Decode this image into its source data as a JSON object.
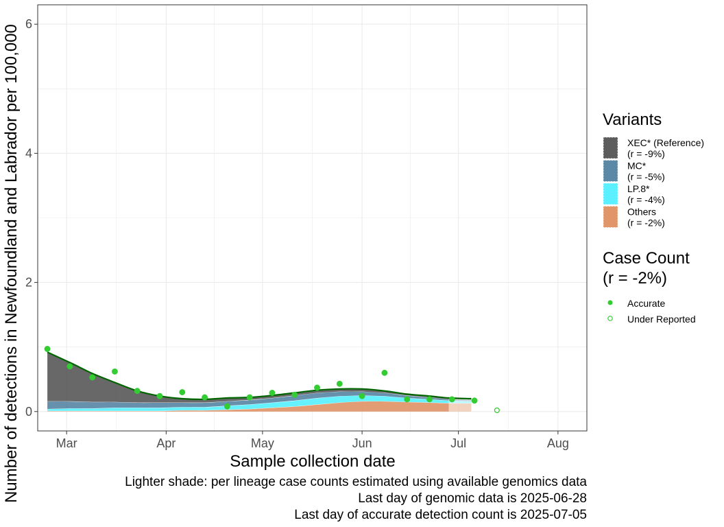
{
  "chart_data": {
    "type": "area",
    "xlabel": "Sample collection date",
    "ylabel": "Number of detections in Newfoundland and Labrador per 100,000",
    "x_ticks": [
      "Mar",
      "Apr",
      "May",
      "Jun",
      "Jul",
      "Aug"
    ],
    "x_tick_dates": [
      "2025-03-01",
      "2025-04-01",
      "2025-05-01",
      "2025-06-01",
      "2025-07-01",
      "2025-08-01"
    ],
    "xlim": [
      "2025-02-20",
      "2025-08-10"
    ],
    "y_ticks": [
      "0",
      "2",
      "4",
      "6"
    ],
    "ylim": [
      -0.3,
      6.3
    ],
    "grid": true,
    "x": [
      "2025-02-23",
      "2025-03-02",
      "2025-03-09",
      "2025-03-16",
      "2025-03-23",
      "2025-03-30",
      "2025-04-06",
      "2025-04-13",
      "2025-04-20",
      "2025-04-27",
      "2025-05-04",
      "2025-05-11",
      "2025-05-18",
      "2025-05-25",
      "2025-06-01",
      "2025-06-08",
      "2025-06-15",
      "2025-06-22",
      "2025-06-28",
      "2025-07-05"
    ],
    "series": [
      {
        "name": "XEC* (Reference)",
        "r": "(r = -9%)",
        "color": "#474747",
        "values": [
          0.76,
          0.6,
          0.44,
          0.3,
          0.18,
          0.1,
          0.06,
          0.05,
          0.05,
          0.04,
          0.04,
          0.04,
          0.04,
          0.04,
          0.04,
          0.03,
          0.02,
          0.02,
          0.02,
          0.02
        ]
      },
      {
        "name": "MC*",
        "r": "(r = -5%)",
        "color": "#447799",
        "values": [
          0.12,
          0.11,
          0.1,
          0.09,
          0.08,
          0.08,
          0.07,
          0.07,
          0.07,
          0.07,
          0.07,
          0.08,
          0.08,
          0.07,
          0.06,
          0.05,
          0.04,
          0.03,
          0.02,
          0.02
        ]
      },
      {
        "name": "LP.8*",
        "r": "(r = -4%)",
        "color": "#44eeff",
        "values": [
          0.03,
          0.04,
          0.04,
          0.05,
          0.05,
          0.05,
          0.05,
          0.05,
          0.06,
          0.07,
          0.08,
          0.09,
          0.1,
          0.1,
          0.09,
          0.08,
          0.06,
          0.05,
          0.04,
          0.03
        ]
      },
      {
        "name": "Others",
        "r": "(r = -2%)",
        "color": "#dd8855",
        "values": [
          0.01,
          0.01,
          0.01,
          0.01,
          0.01,
          0.01,
          0.02,
          0.02,
          0.03,
          0.04,
          0.06,
          0.08,
          0.11,
          0.14,
          0.16,
          0.16,
          0.15,
          0.14,
          0.13,
          0.13
        ]
      }
    ],
    "total_line": {
      "color": "#006400",
      "values": [
        0.92,
        0.76,
        0.59,
        0.45,
        0.32,
        0.24,
        0.2,
        0.19,
        0.21,
        0.22,
        0.25,
        0.29,
        0.33,
        0.35,
        0.35,
        0.32,
        0.27,
        0.24,
        0.21,
        0.2
      ]
    },
    "genomic_cutoff": "2025-06-28",
    "case_count": {
      "color": "#33cc33",
      "points": [
        {
          "x": "2025-02-23",
          "y": 0.97,
          "status": "Accurate"
        },
        {
          "x": "2025-03-02",
          "y": 0.7,
          "status": "Accurate"
        },
        {
          "x": "2025-03-09",
          "y": 0.53,
          "status": "Accurate"
        },
        {
          "x": "2025-03-16",
          "y": 0.62,
          "status": "Accurate"
        },
        {
          "x": "2025-03-23",
          "y": 0.32,
          "status": "Accurate"
        },
        {
          "x": "2025-03-30",
          "y": 0.24,
          "status": "Accurate"
        },
        {
          "x": "2025-04-06",
          "y": 0.3,
          "status": "Accurate"
        },
        {
          "x": "2025-04-13",
          "y": 0.22,
          "status": "Accurate"
        },
        {
          "x": "2025-04-20",
          "y": 0.08,
          "status": "Accurate"
        },
        {
          "x": "2025-04-27",
          "y": 0.22,
          "status": "Accurate"
        },
        {
          "x": "2025-05-04",
          "y": 0.29,
          "status": "Accurate"
        },
        {
          "x": "2025-05-11",
          "y": 0.26,
          "status": "Accurate"
        },
        {
          "x": "2025-05-18",
          "y": 0.37,
          "status": "Accurate"
        },
        {
          "x": "2025-05-25",
          "y": 0.43,
          "status": "Accurate"
        },
        {
          "x": "2025-06-01",
          "y": 0.24,
          "status": "Accurate"
        },
        {
          "x": "2025-06-08",
          "y": 0.6,
          "status": "Accurate"
        },
        {
          "x": "2025-06-15",
          "y": 0.19,
          "status": "Accurate"
        },
        {
          "x": "2025-06-22",
          "y": 0.19,
          "status": "Accurate"
        },
        {
          "x": "2025-06-29",
          "y": 0.19,
          "status": "Accurate"
        },
        {
          "x": "2025-07-06",
          "y": 0.17,
          "status": "Accurate"
        },
        {
          "x": "2025-07-13",
          "y": 0.02,
          "status": "Under Reported"
        }
      ]
    },
    "legend": {
      "variants_title": "Variants",
      "case_title_line1": "Case Count",
      "case_title_line2": "(r = -2%)",
      "accurate_label": "Accurate",
      "under_label": "Under Reported",
      "placement": "right"
    },
    "captions": [
      "Lighter shade: per lineage case counts estimated using available genomics data",
      "Last day of genomic data is 2025-06-28",
      "Last day of accurate detection count is 2025-07-05"
    ]
  }
}
